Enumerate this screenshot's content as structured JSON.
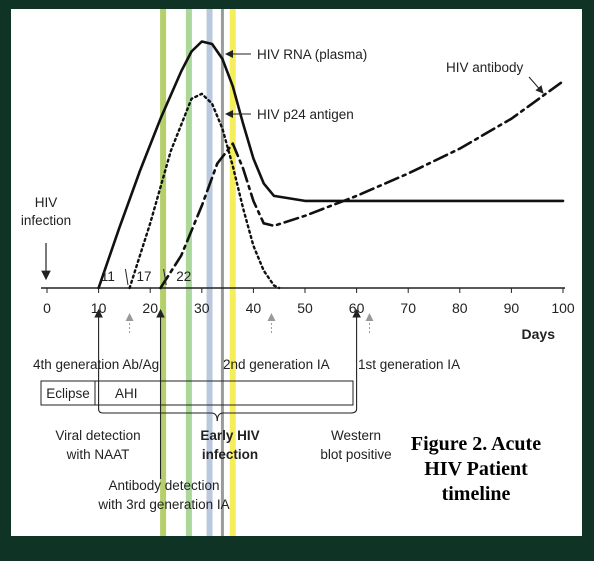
{
  "chart_data": {
    "type": "line",
    "title": "",
    "xlabel": "Days",
    "ylabel": "",
    "xlim": [
      0,
      100
    ],
    "x_ticks": [
      "0",
      "10",
      "20",
      "30",
      "40",
      "50",
      "60",
      "70",
      "80",
      "90",
      "100"
    ],
    "grid": false,
    "series": [
      {
        "name": "HIV RNA (plasma)",
        "style": "solid",
        "x": [
          10,
          14,
          18,
          22,
          26,
          28,
          30,
          32,
          34,
          36,
          38,
          40,
          42,
          44,
          50,
          60,
          70,
          80,
          90,
          100
        ],
        "y": [
          0,
          0.24,
          0.47,
          0.68,
          0.87,
          0.95,
          0.99,
          0.98,
          0.92,
          0.81,
          0.66,
          0.52,
          0.42,
          0.37,
          0.35,
          0.35,
          0.35,
          0.35,
          0.35,
          0.35
        ]
      },
      {
        "name": "HIV p24 antigen",
        "style": "dotted",
        "x": [
          16,
          20,
          24,
          28,
          30,
          32,
          34,
          36,
          38,
          40,
          42,
          44,
          45
        ],
        "y": [
          0,
          0.26,
          0.55,
          0.76,
          0.78,
          0.74,
          0.64,
          0.49,
          0.32,
          0.17,
          0.07,
          0.01,
          0
        ]
      },
      {
        "name": "HIV antibody",
        "style": "dash-dot",
        "x": [
          22,
          26,
          30,
          33,
          36,
          38,
          40,
          42,
          44,
          50,
          60,
          70,
          80,
          90,
          100
        ],
        "y": [
          0,
          0.13,
          0.33,
          0.5,
          0.58,
          0.48,
          0.35,
          0.26,
          0.25,
          0.29,
          0.37,
          0.46,
          0.56,
          0.68,
          0.83
        ]
      }
    ],
    "detection_day_labels": [
      "11",
      "17",
      "22"
    ],
    "annotations": {
      "infection": "HIV\ninfection",
      "fourth_gen": "4th generation Ab/Ag",
      "second_gen": "2nd generation IA",
      "first_gen": "1st generation IA",
      "eclipse": "Eclipse",
      "ahi": "AHI",
      "naat": "Viral detection\nwith NAAT",
      "early": "Early HIV\ninfection",
      "western": "Western\nblot positive",
      "antibody_detection": "Antibody detection\nwith 3rd generation IA"
    },
    "caption": "Figure 2. Acute\nHIV Patient\ntimeline",
    "highlight_bars": [
      {
        "x": 22.5,
        "color": "#a8c850"
      },
      {
        "x": 27.5,
        "color": "#9cd08a"
      },
      {
        "x": 31.5,
        "color": "#aebfd8"
      },
      {
        "x": 34,
        "color": "#8a8a8a"
      },
      {
        "x": 36,
        "color": "#f3ea3c"
      }
    ]
  }
}
